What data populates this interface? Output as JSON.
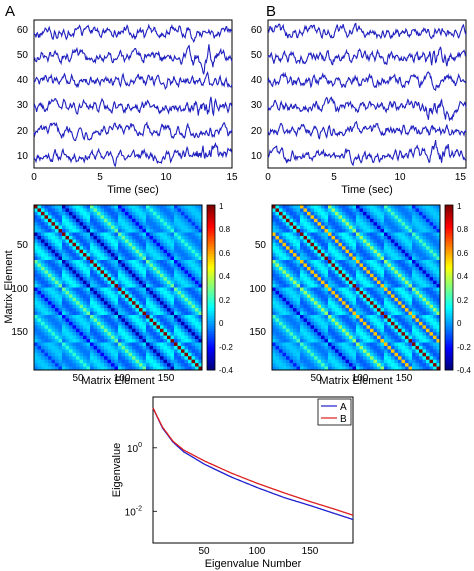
{
  "panels": [
    {
      "letter": "A",
      "timeseries": {
        "xlabel": "Time (sec)",
        "xticks": [
          "0",
          "5",
          "10",
          "15"
        ],
        "yticks": [
          "10",
          "20",
          "30",
          "40",
          "50",
          "60"
        ]
      },
      "matrix": {
        "xlabel": "Matrix Element",
        "ylabel": "Matrix Element",
        "xticks": [
          "50",
          "100",
          "150"
        ],
        "yticks": [
          "50",
          "100",
          "150"
        ],
        "colorbar_ticks": [
          "1",
          "0.8",
          "0.6",
          "0.4",
          "0.2",
          "0",
          "-0.2",
          "-0.4"
        ]
      }
    },
    {
      "letter": "B",
      "timeseries": {
        "xlabel": "Time (sec)",
        "xticks": [
          "0",
          "5",
          "10",
          "15"
        ],
        "yticks": [
          "10",
          "20",
          "30",
          "40",
          "50",
          "60"
        ]
      },
      "matrix": {
        "xlabel": "Matrix Element",
        "ylabel": "Matrix Element",
        "xticks": [
          "50",
          "100",
          "150"
        ],
        "yticks": [
          "50",
          "100",
          "150"
        ],
        "colorbar_ticks": [
          "1",
          "0.8",
          "0.6",
          "0.4",
          "0.2",
          "0",
          "-0.2",
          "-0.4"
        ]
      }
    }
  ],
  "eigen": {
    "xlabel": "Eigenvalue Number",
    "ylabel": "Eigenvalue",
    "xticks": [
      "50",
      "100",
      "150"
    ],
    "ytick_base": "10",
    "ytick_exps": [
      "0",
      "-2"
    ],
    "legend": [
      "A",
      "B"
    ]
  },
  "chart_data": [
    {
      "type": "line",
      "panel": "A",
      "x_unit": "Time (sec)",
      "xlim": [
        0,
        15
      ],
      "ylim": [
        5,
        65
      ],
      "series": [
        {
          "offset": 10,
          "values": []
        },
        {
          "offset": 20,
          "values": []
        },
        {
          "offset": 30,
          "values": []
        },
        {
          "offset": 40,
          "values": []
        },
        {
          "offset": 50,
          "values": []
        },
        {
          "offset": 60,
          "values": []
        }
      ],
      "color": "#1f1fbf"
    },
    {
      "type": "line",
      "panel": "B",
      "x_unit": "Time (sec)",
      "xlim": [
        0,
        15
      ],
      "ylim": [
        5,
        65
      ],
      "series": [
        {
          "offset": 10,
          "values": []
        },
        {
          "offset": 20,
          "values": []
        },
        {
          "offset": 30,
          "values": []
        },
        {
          "offset": 40,
          "values": []
        },
        {
          "offset": 50,
          "values": []
        },
        {
          "offset": 60,
          "values": []
        }
      ],
      "color": "#1f1fbf"
    },
    {
      "type": "heatmap",
      "panel": "A",
      "xlim": [
        1,
        190
      ],
      "ylim": [
        1,
        190
      ],
      "clim": [
        -0.4,
        1
      ],
      "colormap": "jet"
    },
    {
      "type": "heatmap",
      "panel": "B",
      "xlim": [
        1,
        190
      ],
      "ylim": [
        1,
        190
      ],
      "clim": [
        -0.4,
        1
      ],
      "colormap": "jet"
    },
    {
      "type": "line",
      "log_y": true,
      "xlim": [
        1,
        190
      ],
      "ylim": [
        0.001,
        40
      ],
      "series": [
        {
          "name": "A",
          "color": "#1f1fcf",
          "x": [
            1,
            10,
            20,
            30,
            50,
            75,
            100,
            125,
            150,
            175,
            190
          ],
          "y": [
            18,
            4.2,
            1.5,
            0.75,
            0.3,
            0.12,
            0.055,
            0.027,
            0.015,
            0.008,
            0.0055
          ]
        },
        {
          "name": "B",
          "color": "#dd1f1f",
          "x": [
            1,
            10,
            20,
            30,
            50,
            75,
            100,
            125,
            150,
            175,
            190
          ],
          "y": [
            18,
            4.5,
            1.6,
            0.85,
            0.38,
            0.16,
            0.075,
            0.038,
            0.02,
            0.011,
            0.0075
          ]
        }
      ]
    }
  ]
}
